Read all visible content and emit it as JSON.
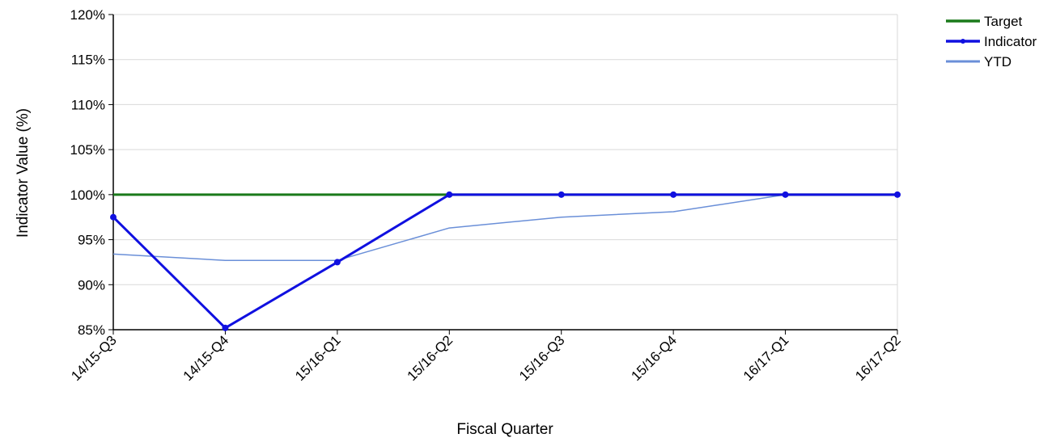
{
  "chart_data": {
    "type": "line",
    "categories": [
      "14/15-Q3",
      "14/15-Q4",
      "15/16-Q1",
      "15/16-Q2",
      "15/16-Q3",
      "15/16-Q4",
      "16/17-Q1",
      "16/17-Q2"
    ],
    "series": [
      {
        "name": "Target",
        "color": "#1a7a1a",
        "values": [
          100,
          100,
          100,
          100,
          100,
          100,
          100,
          100
        ]
      },
      {
        "name": "Indicator",
        "color": "#1010e0",
        "markers": true,
        "values": [
          97.5,
          85.2,
          92.5,
          100,
          100,
          100,
          100,
          100
        ]
      },
      {
        "name": "YTD",
        "color": "#6a8fd8",
        "values": [
          93.4,
          92.7,
          92.7,
          96.3,
          97.5,
          98.1,
          100,
          100
        ]
      }
    ],
    "xlabel": "Fiscal Quarter",
    "ylabel": "Indicator Value (%)",
    "ylim": [
      85,
      120
    ],
    "yticks": [
      "85%",
      "90%",
      "95%",
      "100%",
      "105%",
      "110%",
      "115%",
      "120%"
    ],
    "grid": true,
    "legend_position": "top-right"
  }
}
